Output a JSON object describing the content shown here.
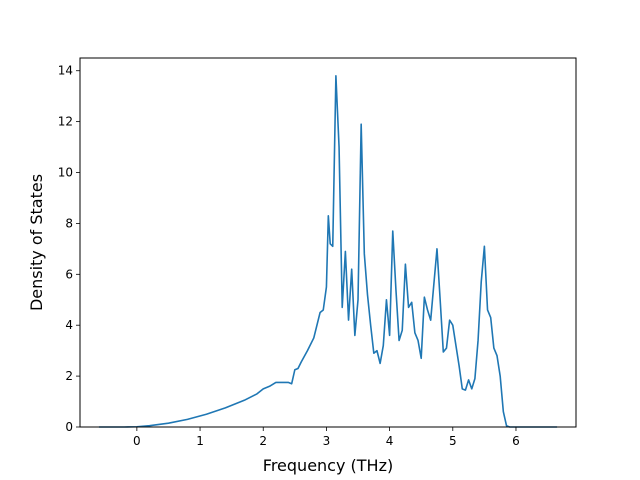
{
  "chart_data": {
    "type": "line",
    "title": "",
    "xlabel": "Frequency (THz)",
    "ylabel": "Density of States",
    "xlim": [
      -0.9,
      6.95
    ],
    "ylim": [
      0,
      14.5
    ],
    "xticks": [
      0,
      1,
      2,
      3,
      4,
      5,
      6
    ],
    "yticks": [
      0,
      2,
      4,
      6,
      8,
      10,
      12,
      14
    ],
    "grid": false,
    "legend": "none",
    "series": [
      {
        "color": "#1f77b4",
        "x": [
          -0.6,
          -0.2,
          0.0,
          0.2,
          0.5,
          0.8,
          1.1,
          1.4,
          1.7,
          1.9,
          2.0,
          2.1,
          2.2,
          2.3,
          2.4,
          2.45,
          2.5,
          2.55,
          2.6,
          2.7,
          2.8,
          2.9,
          2.95,
          3.0,
          3.03,
          3.06,
          3.1,
          3.15,
          3.2,
          3.25,
          3.3,
          3.35,
          3.4,
          3.45,
          3.5,
          3.55,
          3.6,
          3.65,
          3.7,
          3.75,
          3.8,
          3.85,
          3.9,
          3.95,
          4.0,
          4.05,
          4.1,
          4.15,
          4.2,
          4.25,
          4.3,
          4.35,
          4.4,
          4.45,
          4.5,
          4.55,
          4.6,
          4.65,
          4.7,
          4.75,
          4.8,
          4.85,
          4.9,
          4.95,
          5.0,
          5.05,
          5.1,
          5.15,
          5.2,
          5.25,
          5.3,
          5.35,
          5.4,
          5.45,
          5.5,
          5.55,
          5.6,
          5.65,
          5.7,
          5.75,
          5.8,
          5.85,
          5.9,
          5.95,
          6.0,
          6.05,
          6.2,
          6.65
        ],
        "y": [
          0,
          0,
          0.01,
          0.05,
          0.15,
          0.3,
          0.5,
          0.75,
          1.05,
          1.3,
          1.5,
          1.6,
          1.75,
          1.75,
          1.75,
          1.7,
          2.25,
          2.3,
          2.55,
          3.0,
          3.5,
          4.5,
          4.6,
          5.5,
          8.3,
          7.2,
          7.1,
          13.8,
          11.0,
          4.7,
          6.9,
          4.2,
          6.2,
          3.6,
          5.0,
          11.9,
          6.8,
          5.2,
          4.0,
          2.9,
          3.0,
          2.5,
          3.2,
          5.0,
          3.6,
          7.7,
          5.4,
          3.4,
          3.8,
          6.4,
          4.7,
          4.9,
          3.7,
          3.4,
          2.7,
          5.1,
          4.6,
          4.2,
          5.6,
          7.0,
          5.0,
          2.95,
          3.1,
          4.2,
          4.0,
          3.2,
          2.4,
          1.5,
          1.45,
          1.85,
          1.5,
          1.9,
          3.4,
          5.7,
          7.1,
          4.6,
          4.3,
          3.1,
          2.8,
          2.0,
          0.6,
          0.05,
          0,
          0,
          0,
          0,
          0,
          0
        ]
      }
    ]
  }
}
